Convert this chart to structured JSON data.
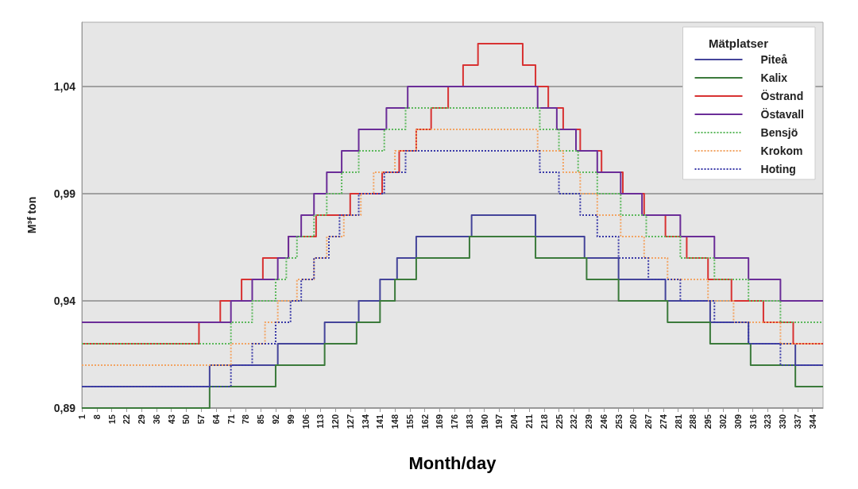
{
  "chart_data": {
    "type": "step",
    "xlabel": "Month/day",
    "ylabel": "M³f ton",
    "legend_title": "Mätplatser",
    "legend": "top right",
    "grid": "y",
    "xlim": [
      1,
      349
    ],
    "xticks": [
      1,
      8,
      15,
      22,
      29,
      36,
      43,
      50,
      57,
      64,
      71,
      78,
      85,
      92,
      99,
      106,
      113,
      120,
      127,
      134,
      141,
      148,
      155,
      162,
      169,
      176,
      183,
      190,
      197,
      204,
      211,
      218,
      225,
      232,
      239,
      246,
      253,
      260,
      267,
      274,
      281,
      288,
      295,
      302,
      309,
      316,
      323,
      330,
      337,
      344
    ],
    "ylim": [
      0.89,
      1.07
    ],
    "yticks": [
      {
        "value": 0.89,
        "label": "0,89"
      },
      {
        "value": 0.94,
        "label": "0,94"
      },
      {
        "value": 0.99,
        "label": "0,99"
      },
      {
        "value": 1.04,
        "label": "1,04"
      }
    ],
    "series": [
      {
        "name": "Piteå",
        "color": "#44449a",
        "line_style": "solid",
        "x": [
          1,
          61,
          93,
          115,
          131,
          141,
          149,
          158,
          184,
          214,
          237,
          253,
          275,
          296,
          314,
          336,
          349
        ],
        "values": [
          0.9,
          0.91,
          0.92,
          0.93,
          0.94,
          0.95,
          0.96,
          0.97,
          0.98,
          0.97,
          0.96,
          0.95,
          0.94,
          0.93,
          0.92,
          0.91,
          0.91
        ]
      },
      {
        "name": "Kalix",
        "color": "#3b7a3b",
        "line_style": "solid",
        "x": [
          1,
          61,
          92,
          115,
          130,
          141,
          148,
          158,
          183,
          214,
          238,
          253,
          276,
          296,
          315,
          336,
          349
        ],
        "values": [
          0.89,
          0.9,
          0.91,
          0.92,
          0.93,
          0.94,
          0.95,
          0.96,
          0.97,
          0.96,
          0.95,
          0.94,
          0.93,
          0.92,
          0.91,
          0.9,
          0.9
        ]
      },
      {
        "name": "Östrand",
        "color": "#d83232",
        "line_style": "solid",
        "x": [
          1,
          56,
          66,
          76,
          86,
          98,
          111,
          127,
          142,
          150,
          158,
          165,
          173,
          180,
          187,
          208,
          214,
          220,
          227,
          235,
          245,
          255,
          265,
          275,
          285,
          295,
          306,
          321,
          335,
          349
        ],
        "values": [
          0.92,
          0.93,
          0.94,
          0.95,
          0.96,
          0.97,
          0.98,
          0.99,
          1.0,
          1.01,
          1.02,
          1.03,
          1.04,
          1.05,
          1.06,
          1.05,
          1.04,
          1.03,
          1.02,
          1.01,
          1.0,
          0.99,
          0.98,
          0.97,
          0.96,
          0.95,
          0.94,
          0.93,
          0.92,
          0.92
        ]
      },
      {
        "name": "Östavall",
        "color": "#6b2d98",
        "line_style": "solid",
        "x": [
          1,
          71,
          81,
          93,
          98,
          104,
          110,
          116,
          123,
          131,
          144,
          154,
          215,
          224,
          233,
          243,
          254,
          264,
          282,
          298,
          314,
          329,
          349
        ],
        "values": [
          0.93,
          0.94,
          0.95,
          0.96,
          0.97,
          0.98,
          0.99,
          1.0,
          1.01,
          1.02,
          1.03,
          1.04,
          1.03,
          1.02,
          1.01,
          1.0,
          0.99,
          0.98,
          0.97,
          0.96,
          0.95,
          0.94,
          0.94
        ]
      },
      {
        "name": "Bensjö",
        "color": "#5cb85c",
        "line_style": "dotted",
        "x": [
          1,
          71,
          81,
          92,
          97,
          102,
          110,
          116,
          123,
          131,
          143,
          153,
          216,
          225,
          234,
          243,
          254,
          266,
          282,
          298,
          314,
          329,
          349
        ],
        "values": [
          0.92,
          0.93,
          0.94,
          0.95,
          0.96,
          0.97,
          0.98,
          0.99,
          1.0,
          1.01,
          1.02,
          1.03,
          1.02,
          1.01,
          1.0,
          0.99,
          0.98,
          0.97,
          0.96,
          0.95,
          0.94,
          0.93,
          0.93
        ]
      },
      {
        "name": "Krokom",
        "color": "#f2a463",
        "line_style": "dotted",
        "x": [
          1,
          71,
          87,
          93,
          102,
          110,
          116,
          124,
          132,
          138,
          148,
          158,
          215,
          227,
          235,
          243,
          254,
          265,
          276,
          295,
          307,
          329,
          349
        ],
        "values": [
          0.91,
          0.92,
          0.93,
          0.94,
          0.95,
          0.96,
          0.97,
          0.98,
          0.99,
          1.0,
          1.01,
          1.02,
          1.01,
          1.0,
          0.99,
          0.98,
          0.97,
          0.96,
          0.95,
          0.94,
          0.93,
          0.92,
          0.92
        ]
      },
      {
        "name": "Hoting",
        "color": "#3a3aa8",
        "line_style": "dotted",
        "x": [
          1,
          71,
          81,
          92,
          99,
          104,
          110,
          117,
          122,
          131,
          143,
          153,
          216,
          225,
          235,
          243,
          253,
          267,
          282,
          298,
          314,
          329,
          349
        ],
        "values": [
          0.9,
          0.91,
          0.92,
          0.93,
          0.94,
          0.95,
          0.96,
          0.97,
          0.98,
          0.99,
          1.0,
          1.01,
          1.0,
          0.99,
          0.98,
          0.97,
          0.96,
          0.95,
          0.94,
          0.93,
          0.92,
          0.91,
          0.91
        ]
      }
    ]
  }
}
